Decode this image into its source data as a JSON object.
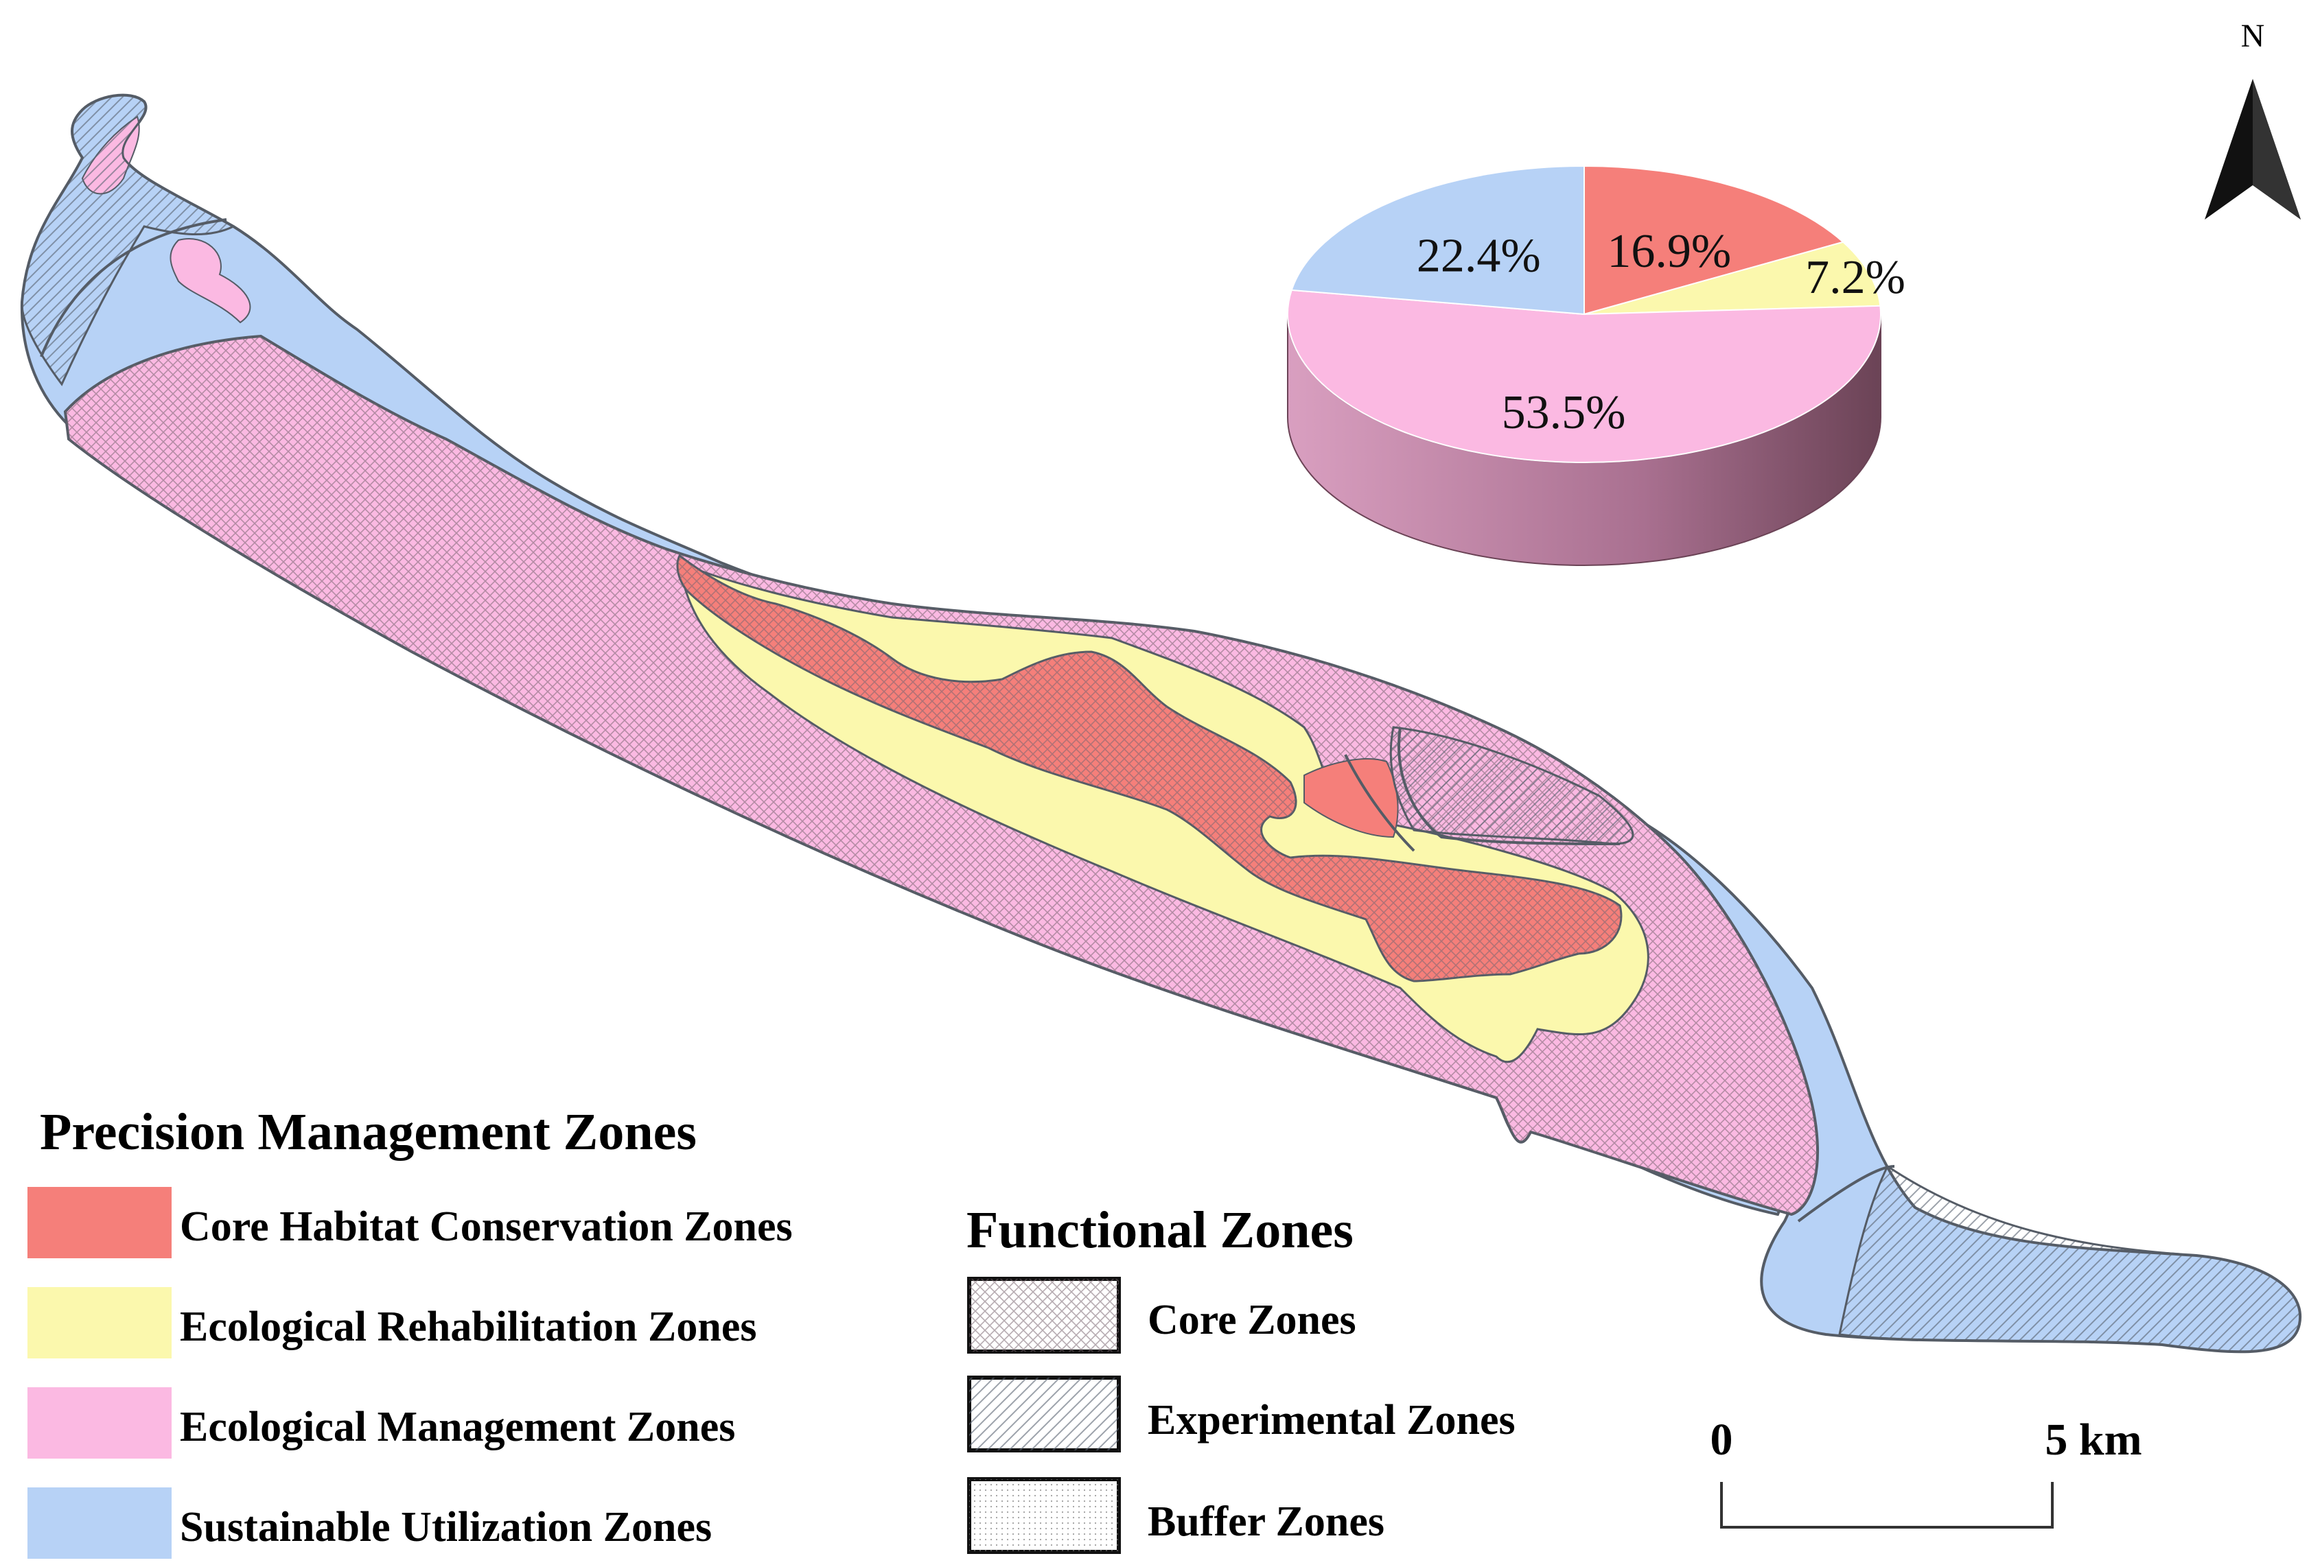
{
  "north_arrow": {
    "label": "N"
  },
  "colors": {
    "core_habitat": "#f57f7a",
    "rehabilitation": "#fbf8ad",
    "management": "#fbb9e2",
    "sustainable": "#b7d2f6",
    "outline": "#555c66",
    "pie_side_dark": "#6b4356",
    "pie_side_light": "#d99fc0"
  },
  "pie": {
    "slices": [
      {
        "label": "16.9%",
        "value": 16.9,
        "zone": "core_habitat"
      },
      {
        "label": "7.2%",
        "value": 7.2,
        "zone": "rehabilitation"
      },
      {
        "label": "53.5%",
        "value": 53.5,
        "zone": "management"
      },
      {
        "label": "22.4%",
        "value": 22.4,
        "zone": "sustainable"
      }
    ]
  },
  "legend_precision": {
    "title": "Precision Management Zones",
    "items": [
      {
        "label": "Core Habitat Conservation Zones",
        "zone": "core_habitat"
      },
      {
        "label": "Ecological Rehabilitation Zones",
        "zone": "rehabilitation"
      },
      {
        "label": "Ecological Management Zones",
        "zone": "management"
      },
      {
        "label": "Sustainable Utilization Zones",
        "zone": "sustainable"
      }
    ]
  },
  "legend_functional": {
    "title": "Functional Zones",
    "items": [
      {
        "label": "Core Zones",
        "pattern": "crosshatch"
      },
      {
        "label": "Experimental Zones",
        "pattern": "diagonal"
      },
      {
        "label": "Buffer Zones",
        "pattern": "dots"
      }
    ]
  },
  "scale_bar": {
    "start_label": "0",
    "end_label": "5 km"
  }
}
